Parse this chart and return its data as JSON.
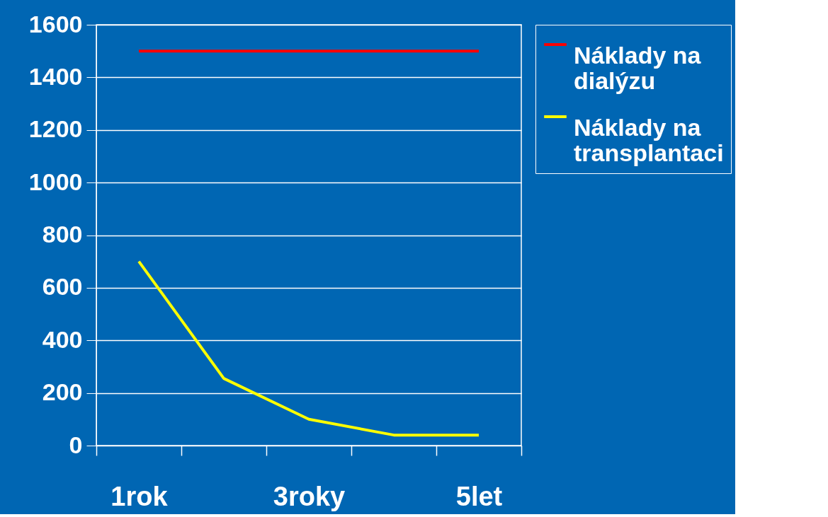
{
  "chart_data": {
    "type": "line",
    "categories": [
      "1rok",
      null,
      "3roky",
      null,
      "5let"
    ],
    "series": [
      {
        "name": "Náklady na dialýzu",
        "color": "#ff0000",
        "values": [
          1500,
          1500,
          1500,
          1500,
          1500
        ]
      },
      {
        "name": "Náklady na transplantaci",
        "color": "#ffff00",
        "values": [
          700,
          255,
          100,
          40,
          40
        ]
      }
    ],
    "ylim": [
      0,
      1600
    ],
    "yticks": [
      0,
      200,
      400,
      600,
      800,
      1000,
      1200,
      1400,
      1600
    ],
    "grid": "y",
    "legend": "right",
    "marker": "none",
    "line_style": "solid"
  }
}
